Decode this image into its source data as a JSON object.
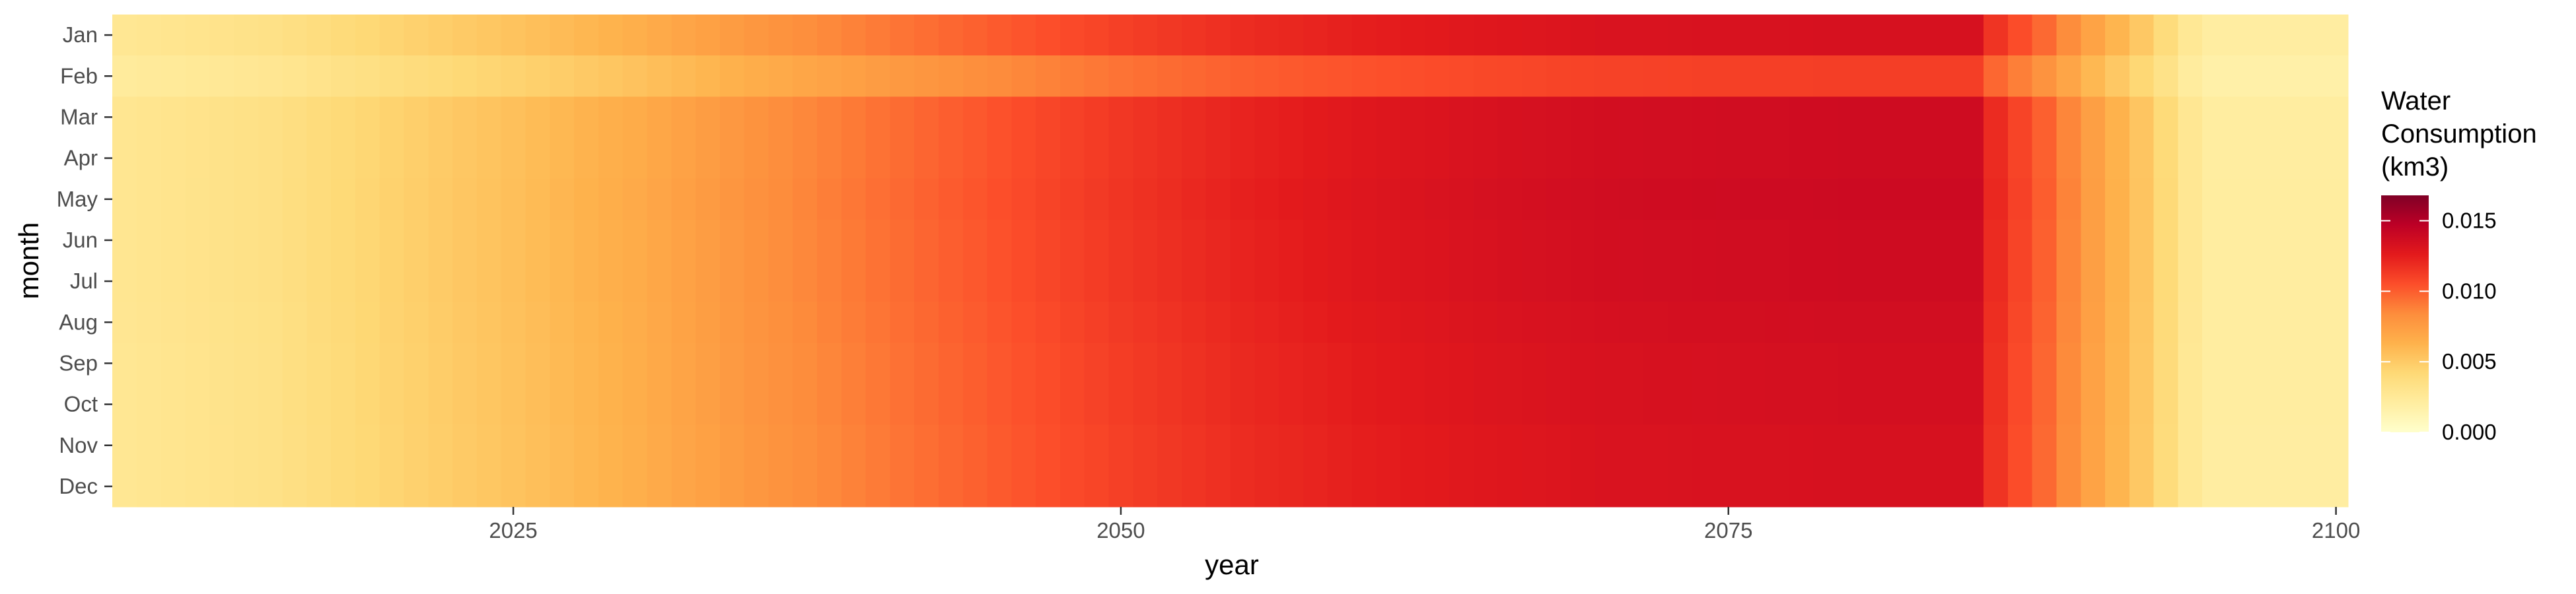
{
  "chart_data": {
    "type": "heatmap",
    "title": "",
    "xlabel": "year",
    "ylabel": "month",
    "xlim": [
      2008.5,
      2100.5
    ],
    "x_ticks": [
      2025,
      2050,
      2075,
      2100
    ],
    "months": [
      "Jan",
      "Feb",
      "Mar",
      "Apr",
      "May",
      "Jun",
      "Jul",
      "Aug",
      "Sep",
      "Oct",
      "Nov",
      "Dec"
    ],
    "years": {
      "start": 2009,
      "end": 2100
    },
    "legend": {
      "title_lines": [
        "Water",
        "Consumption",
        "(km3)"
      ],
      "ticks": [
        0.0,
        0.005,
        0.01,
        0.015
      ],
      "tick_labels": [
        "0.000",
        "0.005",
        "0.010",
        "0.015"
      ],
      "limits": [
        0.0,
        0.0168
      ],
      "placement": "right"
    },
    "grid": true,
    "colorscale": [
      "#ffffcc",
      "#ffeda0",
      "#fed976",
      "#feb24c",
      "#fd8d3c",
      "#fc4e2a",
      "#e31a1c",
      "#bd0026",
      "#800026"
    ],
    "profile_years": [
      2009,
      2015,
      2020,
      2025,
      2030,
      2035,
      2040,
      2045,
      2050,
      2055,
      2060,
      2065,
      2070,
      2075,
      2080,
      2085,
      2086,
      2088,
      2090,
      2092,
      2093,
      2094,
      2095,
      2100
    ],
    "profile_values": [
      0.0028,
      0.0034,
      0.0045,
      0.0055,
      0.0066,
      0.008,
      0.0092,
      0.0103,
      0.0113,
      0.0121,
      0.0127,
      0.0131,
      0.0134,
      0.0135,
      0.0136,
      0.0136,
      0.0118,
      0.0098,
      0.0073,
      0.0052,
      0.004,
      0.0027,
      0.0021,
      0.0021
    ],
    "month_factors": [
      0.98,
      0.82,
      1.01,
      1.01,
      1.02,
      1.01,
      1.01,
      1.0,
      0.99,
      0.99,
      0.98,
      0.98
    ]
  }
}
